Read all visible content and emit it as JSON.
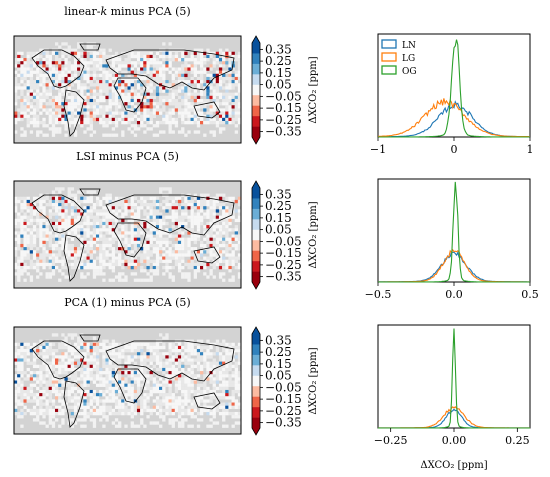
{
  "figure": {
    "rows": [
      {
        "map_title": "linear-k minus PCA (5)",
        "map_title_plain": "linear-",
        "map_title_italic": "k",
        "map_title_rest": " minus PCA (5)",
        "colorbar_label": "ΔXCO₂ [ppm]",
        "colorbar_ticks": [
          "0.35",
          "0.25",
          "0.15",
          "0.05",
          "−0.05",
          "−0.15",
          "−0.25",
          "−0.35"
        ],
        "hist_xticks": [
          "−1",
          "0",
          "1"
        ],
        "hist_xlim": [
          -1.0,
          1.0
        ],
        "show_legend": true
      },
      {
        "map_title": "LSI minus PCA (5)",
        "colorbar_label": "ΔXCO₂ [ppm]",
        "colorbar_ticks": [
          "0.35",
          "0.25",
          "0.15",
          "0.05",
          "−0.05",
          "−0.15",
          "−0.25",
          "−0.35"
        ],
        "hist_xticks": [
          "−0.5",
          "0.0",
          "0.5"
        ],
        "hist_xlim": [
          -0.5,
          0.5
        ],
        "show_legend": false
      },
      {
        "map_title": "PCA (1) minus PCA (5)",
        "colorbar_label": "ΔXCO₂ [ppm]",
        "colorbar_ticks": [
          "0.35",
          "0.25",
          "0.15",
          "0.05",
          "−0.05",
          "−0.15",
          "−0.25",
          "−0.35"
        ],
        "hist_xticks": [
          "−0.25",
          "0.00",
          "0.25"
        ],
        "hist_xlim": [
          -0.3,
          0.3
        ],
        "show_legend": false
      }
    ],
    "hist_xlabel": "ΔXCO₂ [ppm]",
    "legend": [
      {
        "name": "LN",
        "color": "#1f77b4"
      },
      {
        "name": "LG",
        "color": "#ff7f0e"
      },
      {
        "name": "OG",
        "color": "#2ca02c"
      }
    ],
    "colorbar_colors": [
      "#08519c",
      "#3182bd",
      "#6baed6",
      "#c6dbef",
      "#f7f7f7",
      "#fcbba1",
      "#ef6548",
      "#cb181d",
      "#99000d"
    ]
  },
  "chart_data": [
    {
      "type": "heatmap",
      "title": "linear-k minus PCA (5)",
      "colorbar_label": "ΔXCO₂ [ppm]",
      "colorbar_range": [
        -0.35,
        0.35
      ]
    },
    {
      "type": "line",
      "xlim": [
        -1.0,
        1.0
      ],
      "series": [
        {
          "name": "LN",
          "center": 0.02,
          "width": 0.22,
          "peak": 0.32
        },
        {
          "name": "LG",
          "center": -0.12,
          "width": 0.26,
          "peak": 0.35
        },
        {
          "name": "OG",
          "center": 0.02,
          "width": 0.05,
          "peak": 1.0
        }
      ]
    },
    {
      "type": "heatmap",
      "title": "LSI minus PCA (5)",
      "colorbar_label": "ΔXCO₂ [ppm]",
      "colorbar_range": [
        -0.35,
        0.35
      ]
    },
    {
      "type": "line",
      "xlim": [
        -0.5,
        0.5
      ],
      "series": [
        {
          "name": "LN",
          "center": 0.0,
          "width": 0.08,
          "peak": 0.28
        },
        {
          "name": "LG",
          "center": 0.0,
          "width": 0.07,
          "peak": 0.31
        },
        {
          "name": "OG",
          "center": 0.01,
          "width": 0.015,
          "peak": 1.0
        }
      ]
    },
    {
      "type": "heatmap",
      "title": "PCA (1) minus PCA (5)",
      "colorbar_label": "ΔXCO₂ [ppm]",
      "colorbar_range": [
        -0.35,
        0.35
      ]
    },
    {
      "type": "line",
      "xlim": [
        -0.3,
        0.3
      ],
      "series": [
        {
          "name": "LN",
          "center": 0.0,
          "width": 0.03,
          "peak": 0.18
        },
        {
          "name": "LG",
          "center": 0.0,
          "width": 0.04,
          "peak": 0.2
        },
        {
          "name": "OG",
          "center": 0.0,
          "width": 0.006,
          "peak": 1.0
        }
      ]
    }
  ]
}
